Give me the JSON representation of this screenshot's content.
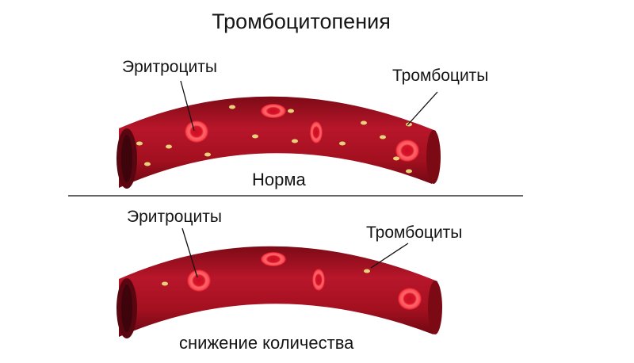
{
  "title": "Тромбоцитопения",
  "panels": [
    {
      "id": "normal",
      "erythrocytes_label": "Эритроциты",
      "platelets_label": "Тромбоциты",
      "caption": "Норма"
    },
    {
      "id": "reduced",
      "erythrocytes_label": "Эритроциты",
      "platelets_label": "Тромбоциты",
      "caption": "снижение количества"
    }
  ],
  "colors": {
    "vessel": "#a3101f",
    "vessel_dark": "#6a0712",
    "cell_ring": "#ff5a5a",
    "cell_core": "#d9142a",
    "platelet": "#e8d27a",
    "divider": "#333333"
  }
}
